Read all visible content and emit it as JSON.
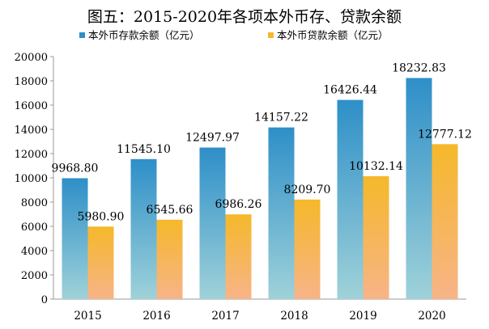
{
  "chart_data": {
    "type": "bar",
    "title": "图五：2015-2020年各项本外币存、贷款余额",
    "categories": [
      "2015",
      "2016",
      "2017",
      "2018",
      "2019",
      "2020"
    ],
    "series": [
      {
        "name": "本外币存款余额（亿元）",
        "values": [
          9968.8,
          11545.1,
          12497.97,
          14157.22,
          16426.44,
          18232.83
        ],
        "labels": [
          "9968.80",
          "11545.10",
          "12497.97",
          "14157.22",
          "16426.44",
          "18232.83"
        ],
        "color": "#2e8fc8",
        "color_bottom": "#9fd2d9"
      },
      {
        "name": "本外币贷款余额（亿元）",
        "values": [
          5980.9,
          6545.66,
          6986.26,
          8209.7,
          10132.14,
          12777.12
        ],
        "labels": [
          "5980.90",
          "6545.66",
          "6986.26",
          "8209.70",
          "10132.14",
          "12777.12"
        ],
        "color": "#f5b82a",
        "color_bottom": "#f7b488"
      }
    ],
    "ylim": [
      0,
      20000
    ],
    "yticks": [
      "0",
      "2000",
      "4000",
      "6000",
      "8000",
      "10000",
      "12000",
      "14000",
      "16000",
      "18000",
      "20000"
    ],
    "xlabel": "",
    "ylabel": "",
    "grid": false,
    "legend": "top"
  }
}
